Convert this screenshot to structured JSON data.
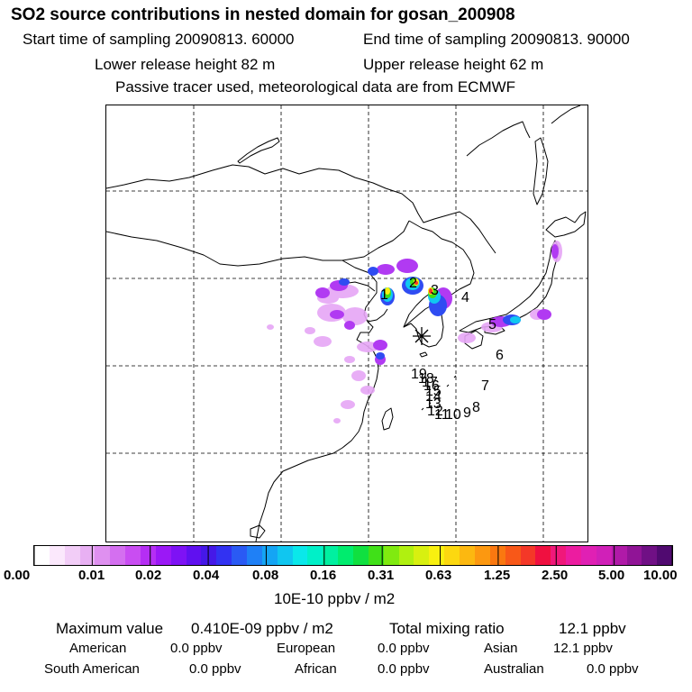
{
  "header": {
    "title": "SO2 source contributions in nested domain for gosan_200908",
    "start_time": "Start time of sampling 20090813. 60000",
    "end_time": "End time of sampling 20090813. 90000",
    "lower_height": "Lower release height   82 m",
    "upper_height": "Upper release height   62 m",
    "tracer_note": "Passive tracer used, meteorological data are from ECMWF"
  },
  "map": {
    "receptor_marker": "star-receptor",
    "point_labels": [
      "1",
      "2",
      "3",
      "4",
      "5",
      "6",
      "7",
      "8",
      "9",
      "10",
      "11",
      "12",
      "13",
      "14",
      "15",
      "16",
      "17",
      "18",
      "19"
    ]
  },
  "colorbar": {
    "colors": [
      "#ffffff",
      "#fbe8fc",
      "#f2cdf7",
      "#e8b0f3",
      "#df90f0",
      "#d46ff0",
      "#c94df2",
      "#b52ef4",
      "#9b18f6",
      "#7e12f5",
      "#6010f0",
      "#4518e8",
      "#3232f2",
      "#2a5af4",
      "#1f80f6",
      "#14a5f4",
      "#10c6f0",
      "#0ae8ea",
      "#00f0c8",
      "#00f0a0",
      "#00ec6e",
      "#10e040",
      "#40e018",
      "#80ea10",
      "#b0f010",
      "#d8f010",
      "#f8f010",
      "#fcd810",
      "#fcb810",
      "#fc9810",
      "#fa7810",
      "#f85818",
      "#f43828",
      "#f01040",
      "#f0187a",
      "#ec1ca0",
      "#e020b4",
      "#d020b8",
      "#b01aa8",
      "#901496",
      "#701085",
      "#500a70"
    ],
    "tick_labels": [
      "0.00",
      "0.01",
      "0.02",
      "0.04",
      "0.08",
      "0.16",
      "0.31",
      "0.63",
      "1.25",
      "2.50",
      "5.00",
      "10.00"
    ],
    "units": "10E-10 ppbv / m2"
  },
  "summary": {
    "max_label": "Maximum value",
    "max_value": "0.410E-09 ppbv / m2",
    "total_label": "Total mixing ratio",
    "total_value": "12.1 ppbv",
    "regions": [
      {
        "name": "American",
        "value": "0.0 ppbv"
      },
      {
        "name": "European",
        "value": "0.0 ppbv"
      },
      {
        "name": "Asian",
        "value": "12.1 ppbv"
      },
      {
        "name": "South American",
        "value": "0.0 ppbv"
      },
      {
        "name": "African",
        "value": "0.0 ppbv"
      },
      {
        "name": "Australian",
        "value": "0.0 ppbv"
      }
    ]
  }
}
